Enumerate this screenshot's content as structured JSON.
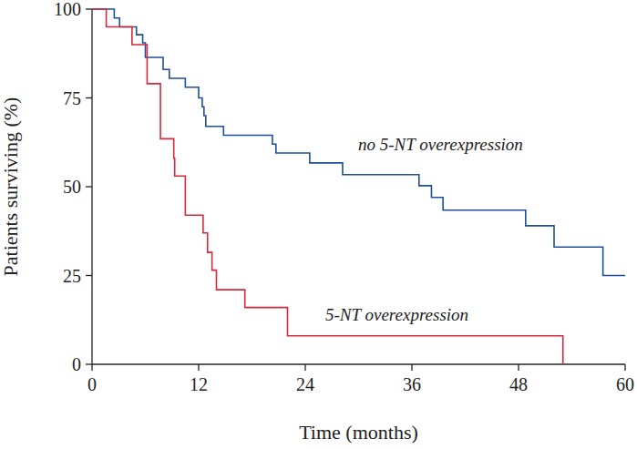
{
  "chart_data": {
    "type": "step",
    "x_label": "Time (months)",
    "y_label": "Patients surviving (%)",
    "xlim": [
      0,
      60
    ],
    "xticks": [
      0,
      12,
      24,
      36,
      48,
      60
    ],
    "ylim": [
      0,
      100
    ],
    "yticks": [
      0,
      25,
      50,
      75,
      100
    ],
    "grid": false,
    "series": [
      {
        "name": "no 5-NT overexpression",
        "color": "#1f4e9c",
        "x": [
          0,
          2.5,
          3.1,
          5,
          5.7,
          6,
          8,
          8.7,
          10.5,
          12,
          12.4,
          12.6,
          12.8,
          14.8,
          20.3,
          20.7,
          24.5,
          28.2,
          36.8,
          38.2,
          39.5,
          48.8,
          52,
          57.5,
          60
        ],
        "values": [
          100,
          97.5,
          95,
          92.8,
          90.5,
          86.4,
          83,
          80.5,
          78,
          75,
          72.5,
          70,
          67,
          64.5,
          62,
          59.5,
          56.7,
          53.4,
          50.3,
          47,
          43.4,
          39,
          33,
          25,
          25
        ]
      },
      {
        "name": "5-NT overexpression",
        "color": "#d6283c",
        "x": [
          0,
          1.6,
          4.5,
          6.2,
          7.7,
          9.2,
          9.3,
          10.5,
          12.5,
          13,
          13.5,
          14,
          17.2,
          22,
          53
        ],
        "values": [
          100,
          95,
          90,
          79,
          63.5,
          58,
          53,
          42,
          37,
          31.5,
          26.5,
          21,
          16,
          8,
          0
        ]
      }
    ]
  }
}
